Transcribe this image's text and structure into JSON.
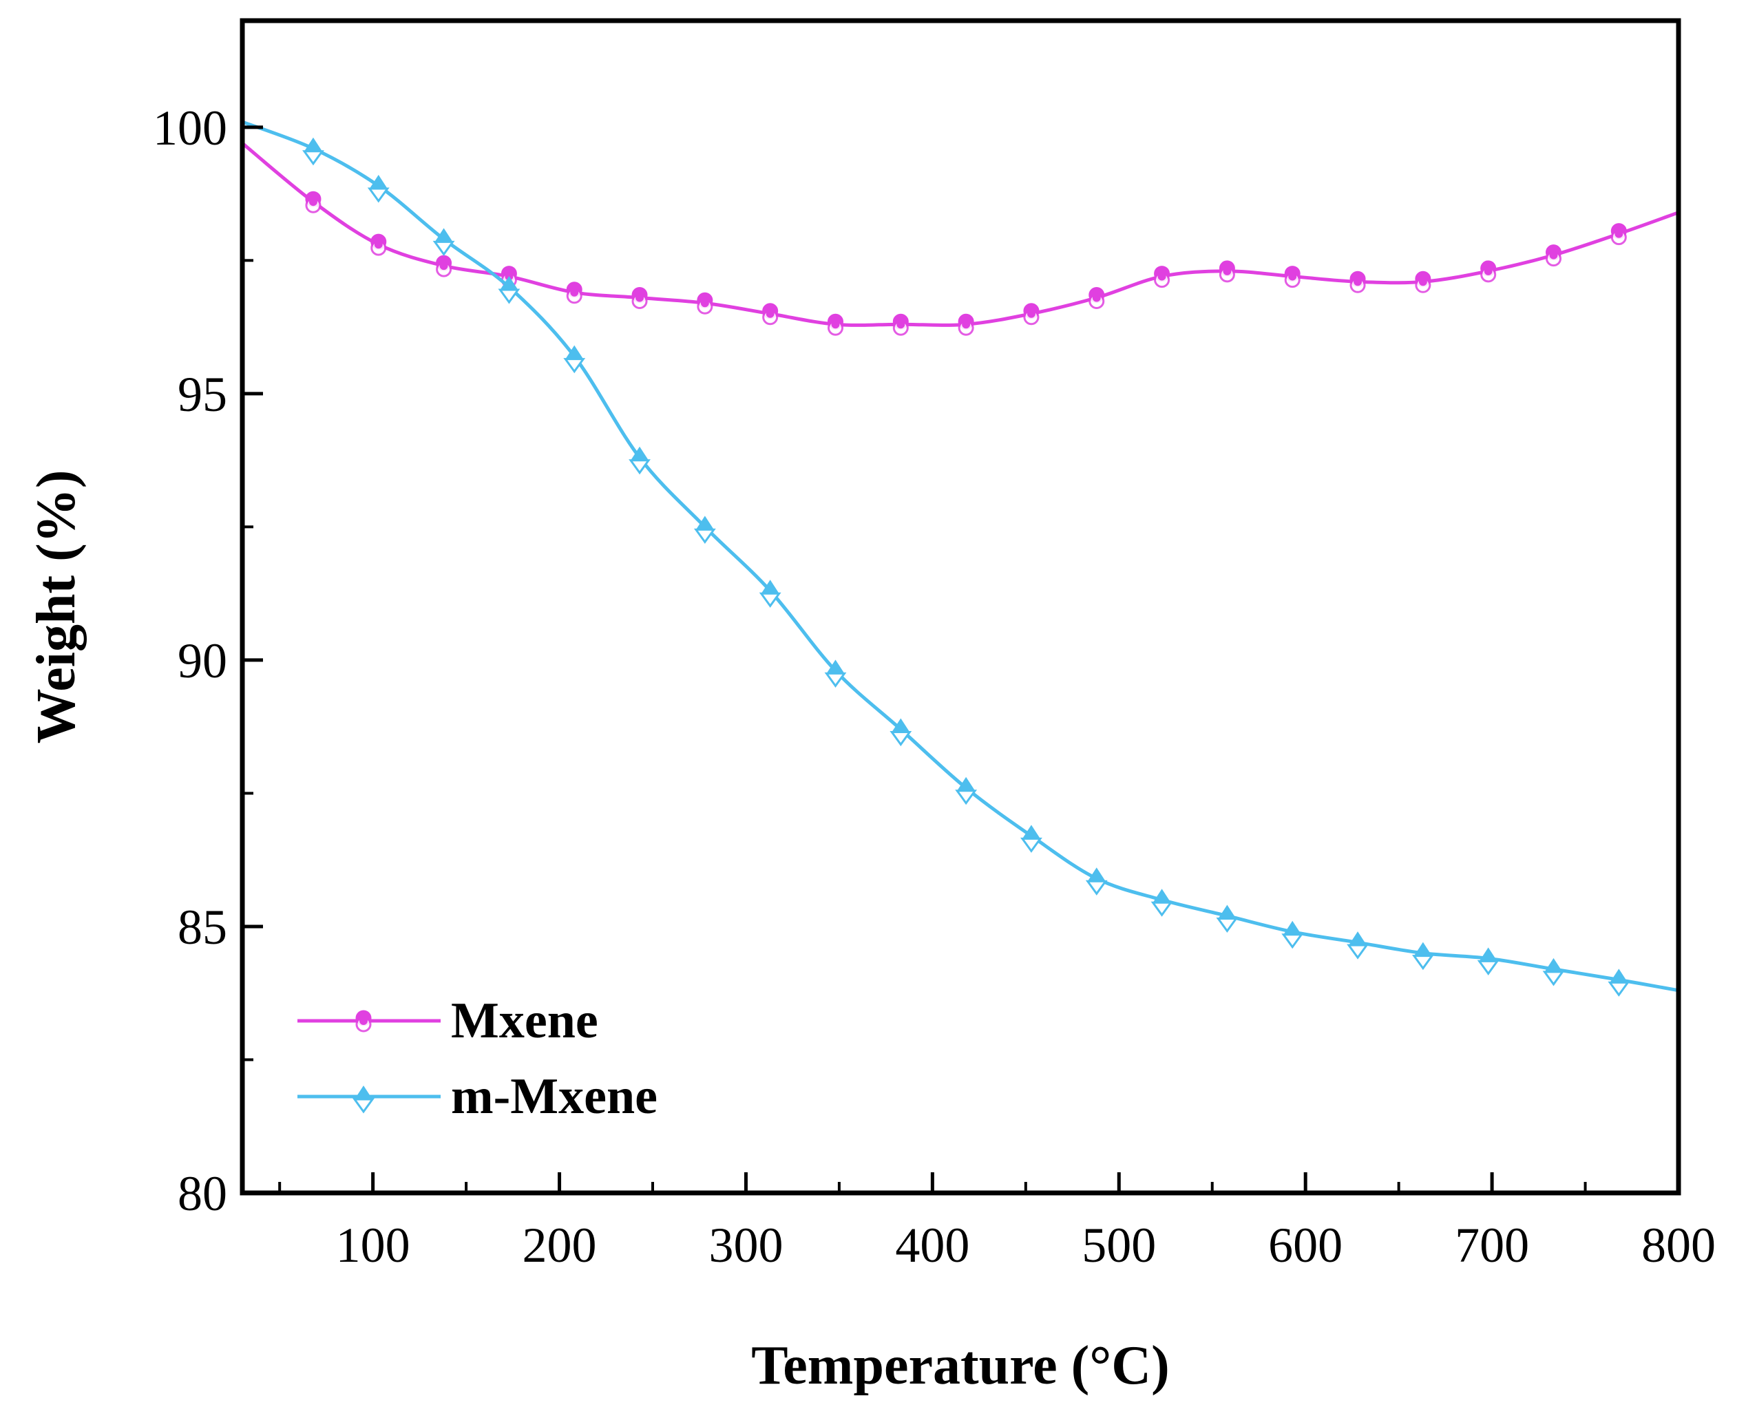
{
  "chart_data": {
    "type": "line",
    "title": "",
    "xlabel": "Temperature (°C)",
    "ylabel": "Weight (%)",
    "xlim": [
      30,
      800
    ],
    "ylim": [
      80,
      102
    ],
    "x_ticks": [
      100,
      200,
      300,
      400,
      500,
      600,
      700,
      800
    ],
    "x_tick_labels": [
      "100",
      "200",
      "300",
      "400",
      "500",
      "600",
      "700",
      "800"
    ],
    "y_ticks": [
      80,
      85,
      90,
      95,
      100
    ],
    "y_tick_labels": [
      "80",
      "85",
      "90",
      "95",
      "100"
    ],
    "legend_position": "bottom-left",
    "series": [
      {
        "name": "Mxene",
        "color": "#E040E0",
        "marker": "circle",
        "x": [
          30,
          68,
          103,
          138,
          173,
          208,
          243,
          278,
          313,
          348,
          383,
          418,
          453,
          488,
          523,
          558,
          593,
          628,
          663,
          698,
          733,
          768,
          800
        ],
        "y": [
          99.7,
          98.6,
          97.8,
          97.4,
          97.2,
          96.9,
          96.8,
          96.7,
          96.5,
          96.3,
          96.3,
          96.3,
          96.5,
          96.8,
          97.2,
          97.3,
          97.2,
          97.1,
          97.1,
          97.3,
          97.6,
          98.0,
          98.4
        ]
      },
      {
        "name": "m-Mxene",
        "color": "#4DBEEE",
        "marker": "triangle",
        "x": [
          30,
          68,
          103,
          138,
          173,
          208,
          243,
          278,
          313,
          348,
          383,
          418,
          453,
          488,
          523,
          558,
          593,
          628,
          663,
          698,
          733,
          768,
          800
        ],
        "y": [
          100.1,
          99.6,
          98.9,
          97.9,
          97.0,
          95.7,
          93.8,
          92.5,
          91.3,
          89.8,
          88.7,
          87.6,
          86.7,
          85.9,
          85.5,
          85.2,
          84.9,
          84.7,
          84.5,
          84.4,
          84.2,
          84.0,
          83.8
        ]
      }
    ]
  }
}
